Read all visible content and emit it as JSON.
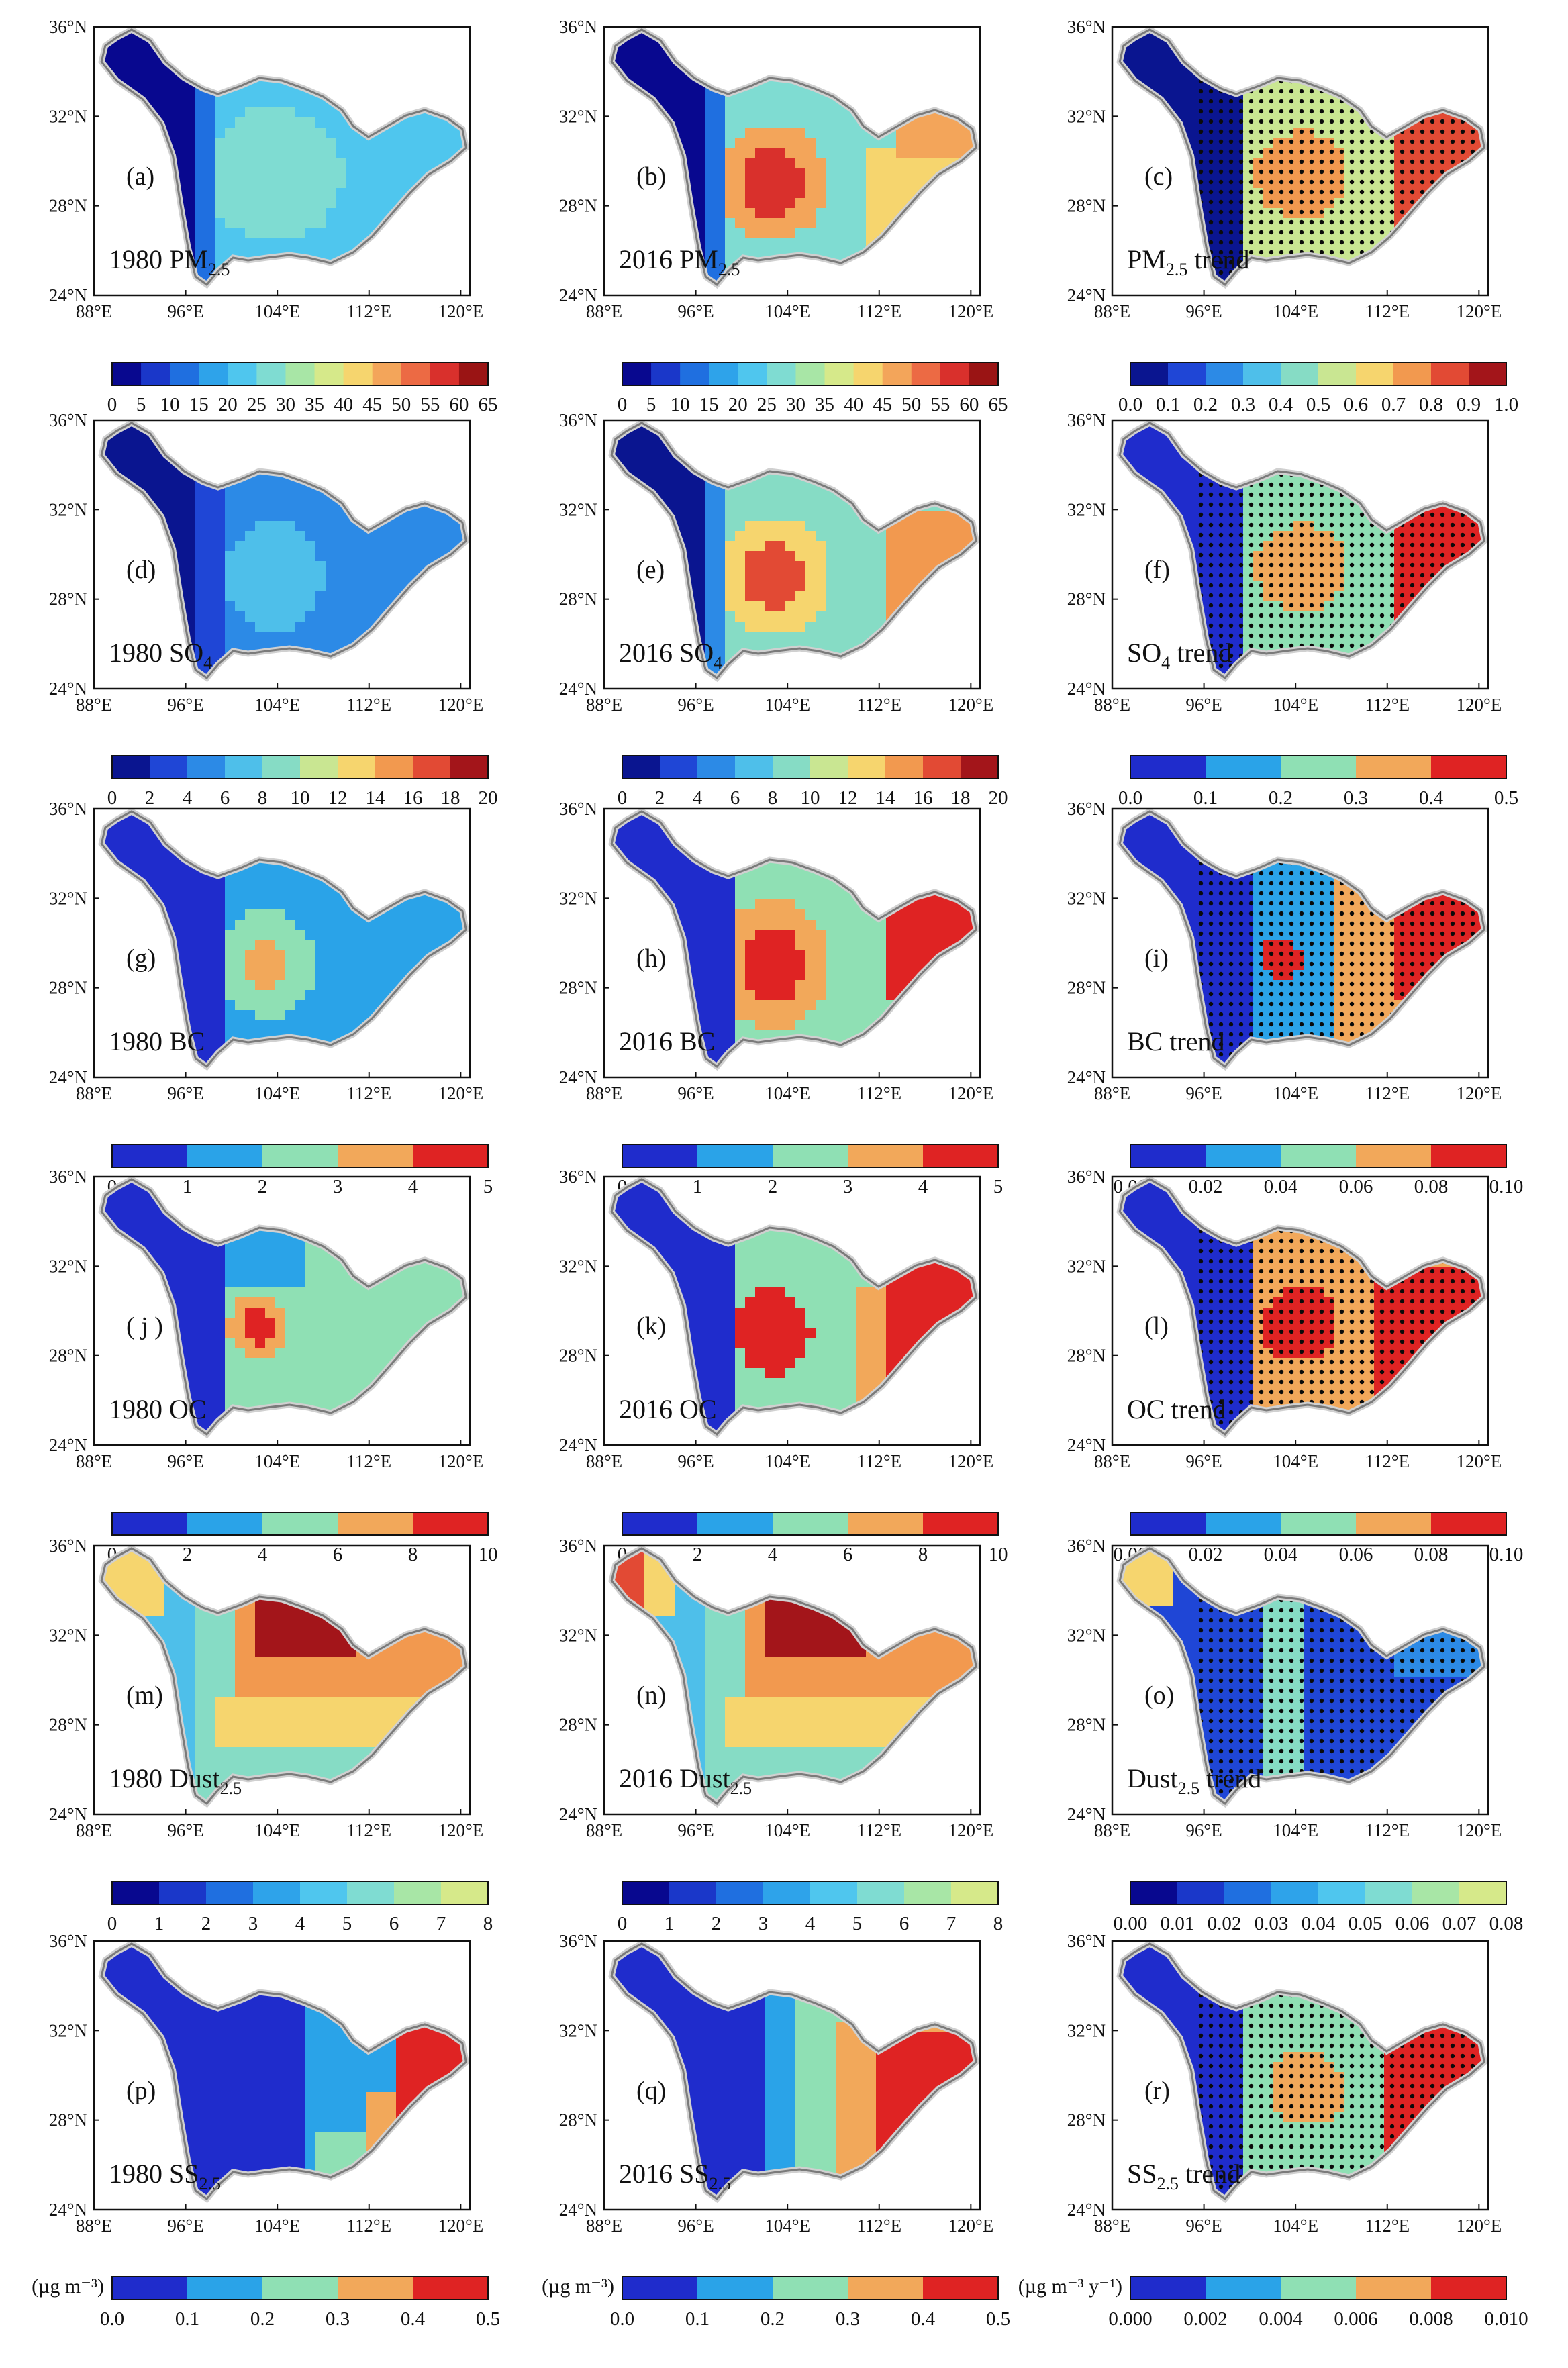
{
  "axes": {
    "lat_labels": [
      "36°N",
      "32°N",
      "28°N",
      "24°N"
    ],
    "lon_labels": [
      "88°E",
      "96°E",
      "104°E",
      "112°E",
      "120°E"
    ]
  },
  "units": {
    "concentration": "(µg m⁻³)",
    "trend": "(µg m⁻³ y⁻¹)"
  },
  "colors": {
    "palette_13": [
      "#08088f",
      "#1a37c9",
      "#1f6fe0",
      "#2ea3ea",
      "#4fc6ee",
      "#7fdcd2",
      "#a8e6a6",
      "#d6e98a",
      "#f6d56e",
      "#f3a55a",
      "#ec6a44",
      "#d9302c",
      "#9a1414"
    ],
    "palette_10": [
      "#0a1590",
      "#1f46d6",
      "#2c8ae6",
      "#4ebfea",
      "#86dcc5",
      "#c9e692",
      "#f6d56e",
      "#f2994f",
      "#e24a34",
      "#a3151a"
    ],
    "palette_5": [
      "#1f2ccc",
      "#2aa3e8",
      "#8fe0b4",
      "#f2a85a",
      "#df2323"
    ],
    "outline": "#7a7a7a",
    "dots": "#0a0a0a"
  },
  "rows": [
    {
      "colorbar": {
        "type": "c13",
        "unit": "",
        "ticks_conc": [
          "0",
          "5",
          "10",
          "15",
          "20",
          "25",
          "30",
          "35",
          "40",
          "45",
          "50",
          "55",
          "60",
          "65"
        ],
        "ticks_trend": [
          "0.0",
          "0.1",
          "0.2",
          "0.3",
          "0.4",
          "0.5",
          "0.6",
          "0.7",
          "0.8",
          "0.9",
          "1.0"
        ]
      },
      "panels": [
        {
          "letter": "(a)",
          "year": "1980",
          "species": "PM",
          "sub": "2.5",
          "suffix": "",
          "pattern": "pm80",
          "dotted": false
        },
        {
          "letter": "(b)",
          "year": "2016",
          "species": "PM",
          "sub": "2.5",
          "suffix": "",
          "pattern": "pm16",
          "dotted": false
        },
        {
          "letter": "(c)",
          "year": "",
          "species": "PM",
          "sub": "2.5",
          "suffix": " trend",
          "pattern": "pmtr",
          "dotted": true
        }
      ]
    },
    {
      "colorbar": {
        "type": "c10",
        "unit": "",
        "ticks_conc": [
          "0",
          "2",
          "4",
          "6",
          "8",
          "10",
          "12",
          "14",
          "16",
          "18",
          "20"
        ],
        "ticks_trend": [
          "0.0",
          "0.1",
          "0.2",
          "0.3",
          "0.4",
          "0.5"
        ]
      },
      "panels": [
        {
          "letter": "(d)",
          "year": "1980",
          "species": "SO",
          "sub": "4",
          "suffix": "",
          "pattern": "so80",
          "dotted": false
        },
        {
          "letter": "(e)",
          "year": "2016",
          "species": "SO",
          "sub": "4",
          "suffix": "",
          "pattern": "so16",
          "dotted": false
        },
        {
          "letter": "(f)",
          "year": "",
          "species": "SO",
          "sub": "4",
          "suffix": " trend",
          "pattern": "sotr",
          "dotted": true
        }
      ]
    },
    {
      "colorbar": {
        "type": "c5",
        "unit": "",
        "ticks_conc": [
          "0",
          "1",
          "2",
          "3",
          "4",
          "5"
        ],
        "ticks_trend": [
          "0.00",
          "0.02",
          "0.04",
          "0.06",
          "0.08",
          "0.10"
        ]
      },
      "panels": [
        {
          "letter": "(g)",
          "year": "1980",
          "species": "BC",
          "sub": "",
          "suffix": "",
          "pattern": "bc80",
          "dotted": false
        },
        {
          "letter": "(h)",
          "year": "2016",
          "species": "BC",
          "sub": "",
          "suffix": "",
          "pattern": "bc16",
          "dotted": false
        },
        {
          "letter": "(i)",
          "year": "",
          "species": "BC",
          "sub": "",
          "suffix": " trend",
          "pattern": "bctr",
          "dotted": true
        }
      ]
    },
    {
      "colorbar": {
        "type": "c5",
        "unit": "",
        "ticks_conc": [
          "0",
          "2",
          "4",
          "6",
          "8",
          "10"
        ],
        "ticks_trend": [
          "0.00",
          "0.02",
          "0.04",
          "0.06",
          "0.08",
          "0.10"
        ]
      },
      "panels": [
        {
          "letter": "( j )",
          "year": "1980",
          "species": "OC",
          "sub": "",
          "suffix": "",
          "pattern": "oc80",
          "dotted": false
        },
        {
          "letter": "(k)",
          "year": "2016",
          "species": "OC",
          "sub": "",
          "suffix": "",
          "pattern": "oc16",
          "dotted": false
        },
        {
          "letter": "(l)",
          "year": "",
          "species": "OC",
          "sub": "",
          "suffix": " trend",
          "pattern": "octr",
          "dotted": true
        }
      ]
    },
    {
      "colorbar": {
        "type": "mixed",
        "unit": "",
        "ticks_conc": [
          "0",
          "1",
          "2",
          "3",
          "4",
          "5",
          "6",
          "7",
          "8"
        ],
        "ticks_trend": [
          "0.00",
          "0.01",
          "0.02",
          "0.03",
          "0.04",
          "0.05",
          "0.06",
          "0.07",
          "0.08"
        ]
      },
      "panels": [
        {
          "letter": "(m)",
          "year": "1980",
          "species": "Dust",
          "sub": "2.5",
          "suffix": "",
          "pattern": "du80",
          "dotted": false
        },
        {
          "letter": "(n)",
          "year": "2016",
          "species": "Dust",
          "sub": "2.5",
          "suffix": "",
          "pattern": "du16",
          "dotted": false
        },
        {
          "letter": "(o)",
          "year": "",
          "species": "Dust",
          "sub": "2.5",
          "suffix": " trend",
          "pattern": "dutr",
          "dotted": true
        }
      ]
    },
    {
      "colorbar": {
        "type": "c5",
        "unit": "yes",
        "ticks_conc": [
          "0.0",
          "0.1",
          "0.2",
          "0.3",
          "0.4",
          "0.5"
        ],
        "ticks_trend": [
          "0.000",
          "0.002",
          "0.004",
          "0.006",
          "0.008",
          "0.010"
        ]
      },
      "panels": [
        {
          "letter": "(p)",
          "year": "1980",
          "species": "SS",
          "sub": "2.5",
          "suffix": "",
          "pattern": "ss80",
          "dotted": false
        },
        {
          "letter": "(q)",
          "year": "2016",
          "species": "SS",
          "sub": "2.5",
          "suffix": "",
          "pattern": "ss16",
          "dotted": false
        },
        {
          "letter": "(r)",
          "year": "",
          "species": "SS",
          "sub": "2.5",
          "suffix": " trend",
          "pattern": "sstr",
          "dotted": true
        }
      ]
    }
  ]
}
